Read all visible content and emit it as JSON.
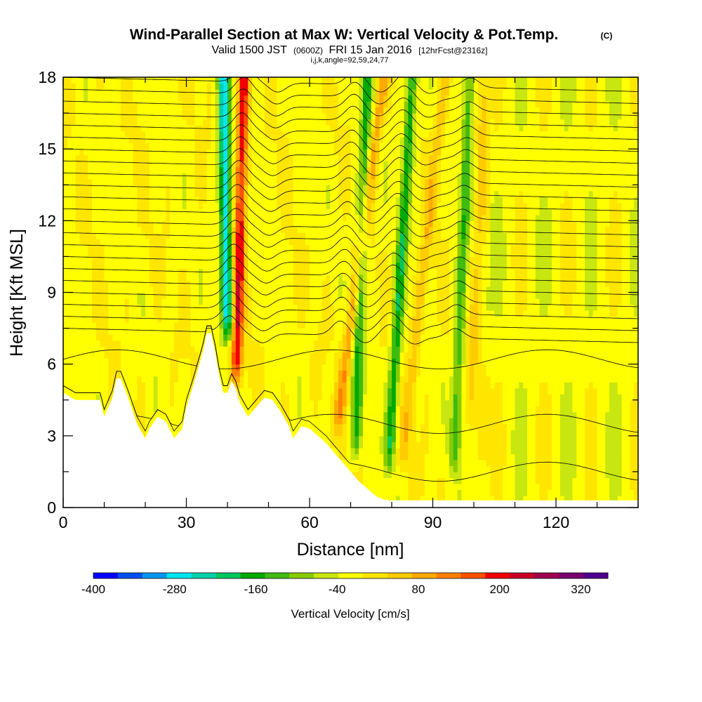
{
  "title": "Wind-Parallel Section at Max W: Vertical Velocity & Pot.Temp.",
  "copyright": "(C)",
  "subtitle_main_a": "Valid 1500 JST",
  "subtitle_small_a": "(0600Z)",
  "subtitle_main_b": "FRI 15 Jan 2016",
  "subtitle_small_b": "[12hrFcst@2316z]",
  "subtitle_line2": "i,j,k,angle=92,59,24,77",
  "chart_data": {
    "type": "heatmap",
    "xlabel": "Distance [nm]",
    "ylabel": "Height [Kft MSL]",
    "xlim": [
      0,
      140
    ],
    "ylim": [
      0,
      18
    ],
    "x_ticks": [
      "0",
      "30",
      "60",
      "90",
      "120"
    ],
    "x_tick_values": [
      0,
      30,
      60,
      90,
      120
    ],
    "y_ticks": [
      "0",
      "3",
      "6",
      "9",
      "12",
      "15",
      "18"
    ],
    "y_tick_values": [
      0,
      3,
      6,
      9,
      12,
      15,
      18
    ],
    "colorbar": {
      "label": "Vertical Velocity [cm/s]",
      "tick_labels": [
        "-400",
        "-280",
        "-160",
        "-40",
        "80",
        "200",
        "320"
      ],
      "tick_values": [
        -400,
        -280,
        -160,
        -40,
        80,
        200,
        320
      ],
      "range": [
        -400,
        360
      ],
      "step": 40,
      "colors": [
        "#0000ff",
        "#0050f0",
        "#0096f0",
        "#00e6f0",
        "#00d2aa",
        "#00c860",
        "#00aa00",
        "#40bb10",
        "#88cc00",
        "#c8e610",
        "#ffff00",
        "#ffe600",
        "#ffcc00",
        "#ffaa00",
        "#ff8000",
        "#ff5000",
        "#f00000",
        "#c80028",
        "#a00050",
        "#780070",
        "#500090"
      ]
    },
    "terrain_profile": {
      "x": [
        0,
        3,
        9,
        10,
        12,
        13,
        14,
        16,
        18,
        19,
        20,
        21,
        23,
        25,
        27,
        29,
        30,
        32,
        34,
        35,
        36,
        37,
        38,
        39,
        40,
        41,
        42,
        43,
        45,
        47,
        49,
        51,
        53,
        55,
        56,
        58,
        60,
        62,
        64,
        66,
        68,
        70,
        72,
        74,
        76,
        77,
        79,
        81,
        140
      ],
      "height": [
        4.8,
        4.5,
        4.5,
        3.8,
        4.6,
        5.4,
        5.4,
        4.5,
        3.5,
        3.2,
        2.9,
        3.3,
        3.8,
        3.6,
        2.9,
        3.3,
        4.2,
        5.3,
        6.5,
        7.3,
        7.3,
        6.5,
        5.5,
        4.8,
        4.8,
        5.3,
        5.0,
        4.4,
        3.8,
        4.2,
        4.6,
        4.5,
        4.0,
        3.4,
        2.9,
        3.4,
        3.3,
        3.0,
        2.7,
        2.3,
        1.9,
        1.5,
        1.1,
        0.8,
        0.5,
        0.4,
        0.3,
        0.3,
        0.3
      ]
    },
    "updraft_bands": [
      {
        "x_base": 42,
        "height_base": 4.5,
        "x_top": 44,
        "peak_w": 240
      },
      {
        "x_base": 66,
        "height_base": 2.5,
        "x_top": 78,
        "peak_w": 120
      },
      {
        "x_base": 82,
        "height_base": 1.0,
        "x_top": 93,
        "peak_w": 80
      },
      {
        "x_base": 99,
        "height_base": 3.0,
        "x_top": 103,
        "peak_w": 60
      }
    ],
    "downdraft_bands": [
      {
        "x_base": 40,
        "height_base": 6.5,
        "x_top": 39,
        "peak_w": -300
      },
      {
        "x_base": 71,
        "height_base": 1.5,
        "x_top": 74,
        "peak_w": -160
      },
      {
        "x_base": 79,
        "height_base": 1.0,
        "x_top": 85,
        "peak_w": -180
      },
      {
        "x_base": 95,
        "height_base": 1.0,
        "x_top": 99,
        "peak_w": -140
      }
    ]
  }
}
